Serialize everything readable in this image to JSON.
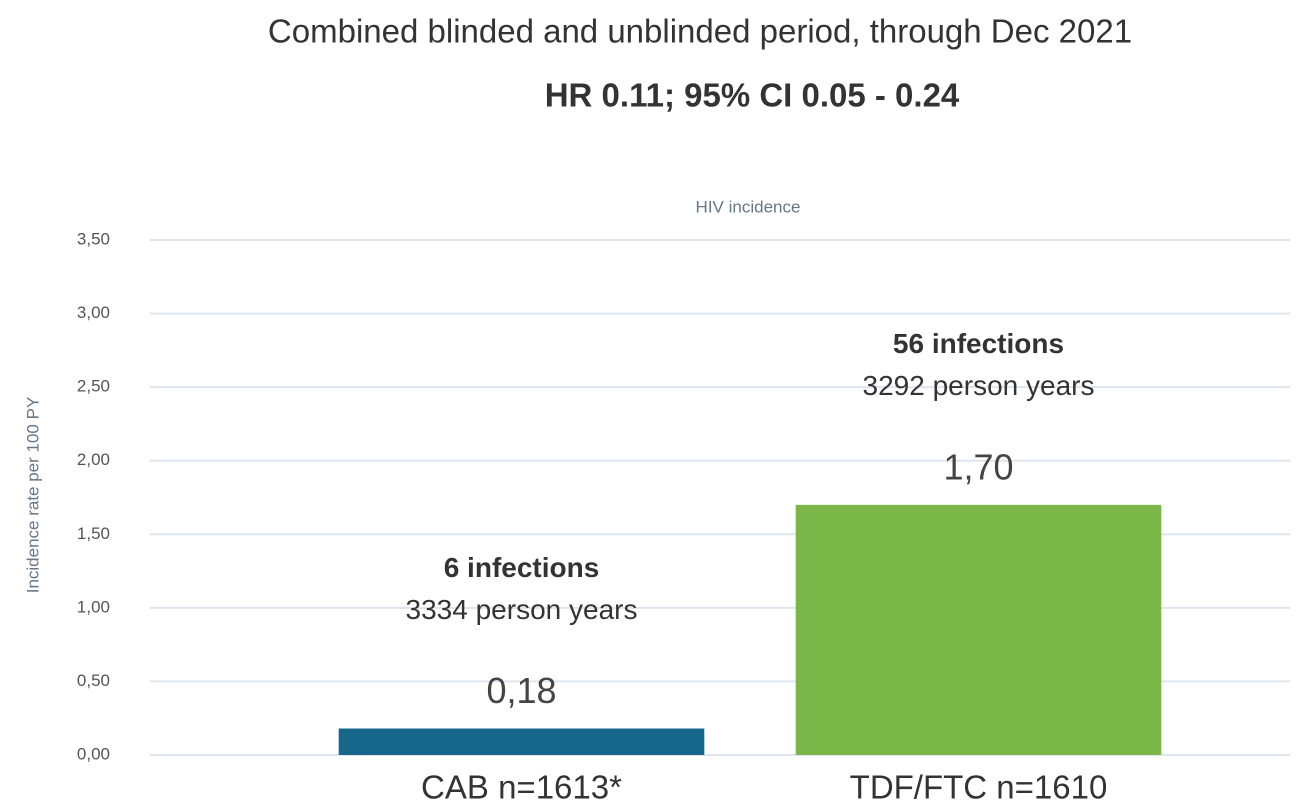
{
  "chart_data": {
    "type": "bar",
    "title": "Combined blinded and unblinded period, through Dec 2021",
    "subtitle": "HR 0.11; 95% CI 0.05 - 0.24",
    "chart_title": "HIV incidence",
    "y_label": "Incidence rate per 100 PY",
    "categories": [
      "CAB n=1613*",
      "TDF/FTC n=1610"
    ],
    "values": [
      0.18,
      1.7
    ],
    "value_labels": [
      "0,18",
      "1,70"
    ],
    "colors": [
      "#17678a",
      "#7ab648"
    ],
    "annotations": [
      [
        "6 infections",
        "3334 person years"
      ],
      [
        "56 infections",
        "3292 person years"
      ]
    ],
    "ylim": [
      0,
      3.5
    ],
    "yticks": [
      {
        "value": 0,
        "label": "0,00"
      },
      {
        "value": 0.5,
        "label": "0,50"
      },
      {
        "value": 1,
        "label": "1,00"
      },
      {
        "value": 1.5,
        "label": "1,50"
      },
      {
        "value": 2,
        "label": "2,00"
      },
      {
        "value": 2.5,
        "label": "2,50"
      },
      {
        "value": 3,
        "label": "3,00"
      },
      {
        "value": 3.5,
        "label": "3,50"
      }
    ],
    "grid": true
  }
}
